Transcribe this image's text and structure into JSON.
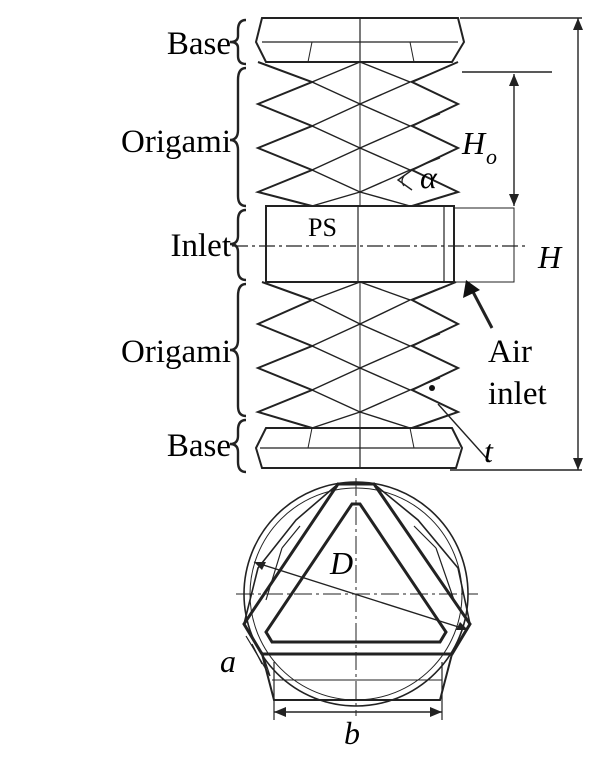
{
  "labels": {
    "base_top": "Base",
    "origami_top": "Origami",
    "inlet": "Inlet",
    "origami_bottom": "Origami",
    "base_bottom": "Base",
    "alpha": "α",
    "h_o_main": "H",
    "h_o_sub": "o",
    "h": "H",
    "ps": "PS",
    "air_inlet_1": "Air",
    "air_inlet_2": "inlet",
    "t": "t",
    "d": "D",
    "a": "a",
    "b": "b"
  }
}
